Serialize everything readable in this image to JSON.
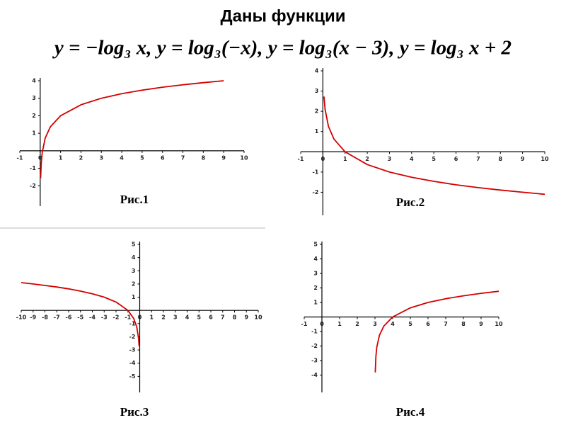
{
  "header": {
    "title": "Даны функции",
    "formula": "y = −log₃ x, y = log₃(−x), y = log₃(x − 3), y = log₃ x + 2"
  },
  "chart_data": [
    {
      "type": "line",
      "title": "Рис.1",
      "color": "#d40000",
      "x": [
        0.02,
        0.05,
        0.1,
        0.25,
        0.5,
        1,
        2,
        3,
        4,
        5,
        6,
        7,
        8,
        9
      ],
      "values": [
        -1.56,
        -0.73,
        -0.1,
        0.74,
        1.37,
        2,
        2.63,
        3,
        3.26,
        3.46,
        3.63,
        3.77,
        3.89,
        4
      ],
      "xlim": [
        -1,
        10
      ],
      "ylim": [
        -3,
        4
      ],
      "xticks": [
        -1,
        0,
        1,
        2,
        3,
        4,
        5,
        6,
        7,
        8,
        9,
        10
      ],
      "yticks": [
        -2,
        -1,
        1,
        2,
        3,
        4
      ]
    },
    {
      "type": "line",
      "title": "Рис.2",
      "color": "#d40000",
      "x": [
        0.05,
        0.1,
        0.25,
        0.5,
        1,
        2,
        3,
        4,
        5,
        6,
        7,
        8,
        9,
        10
      ],
      "values": [
        2.73,
        2.1,
        1.26,
        0.63,
        0,
        -0.63,
        -1,
        -1.26,
        -1.46,
        -1.63,
        -1.77,
        -1.89,
        -2,
        -2.1
      ],
      "xlim": [
        -1,
        10
      ],
      "ylim": [
        -3,
        4
      ],
      "xticks": [
        -1,
        0,
        1,
        2,
        3,
        4,
        5,
        6,
        7,
        8,
        9,
        10
      ],
      "yticks": [
        -2,
        -1,
        1,
        2,
        3,
        4
      ]
    },
    {
      "type": "line",
      "title": "Рис.3",
      "color": "#d40000",
      "x": [
        -10,
        -9,
        -8,
        -7,
        -6,
        -5,
        -4,
        -3,
        -2,
        -1,
        -0.5,
        -0.25,
        -0.1,
        -0.05
      ],
      "values": [
        2.1,
        2,
        1.89,
        1.77,
        1.63,
        1.46,
        1.26,
        1,
        0.63,
        0,
        -0.63,
        -1.26,
        -2.1,
        -2.73
      ],
      "xlim": [
        -10,
        10
      ],
      "ylim": [
        -6,
        5
      ],
      "xticks": [
        -10,
        -9,
        -8,
        -7,
        -6,
        -5,
        -4,
        -3,
        -2,
        -1,
        0,
        1,
        2,
        3,
        4,
        5,
        6,
        7,
        8,
        9,
        10
      ],
      "yticks": [
        -5,
        -4,
        -3,
        -2,
        -1,
        1,
        2,
        3,
        4,
        5
      ]
    },
    {
      "type": "line",
      "title": "Рис.4",
      "color": "#d40000",
      "x": [
        3.015,
        3.05,
        3.1,
        3.25,
        3.5,
        4,
        5,
        6,
        7,
        8,
        9,
        10
      ],
      "values": [
        -3.82,
        -2.73,
        -2.1,
        -1.26,
        -0.63,
        0,
        0.63,
        1,
        1.26,
        1.46,
        1.63,
        1.77
      ],
      "xlim": [
        -1,
        10
      ],
      "ylim": [
        -5,
        5
      ],
      "xticks": [
        -1,
        0,
        1,
        2,
        3,
        4,
        5,
        6,
        7,
        8,
        9,
        10
      ],
      "yticks": [
        -4,
        -3,
        -2,
        -1,
        1,
        2,
        3,
        4,
        5
      ]
    }
  ]
}
